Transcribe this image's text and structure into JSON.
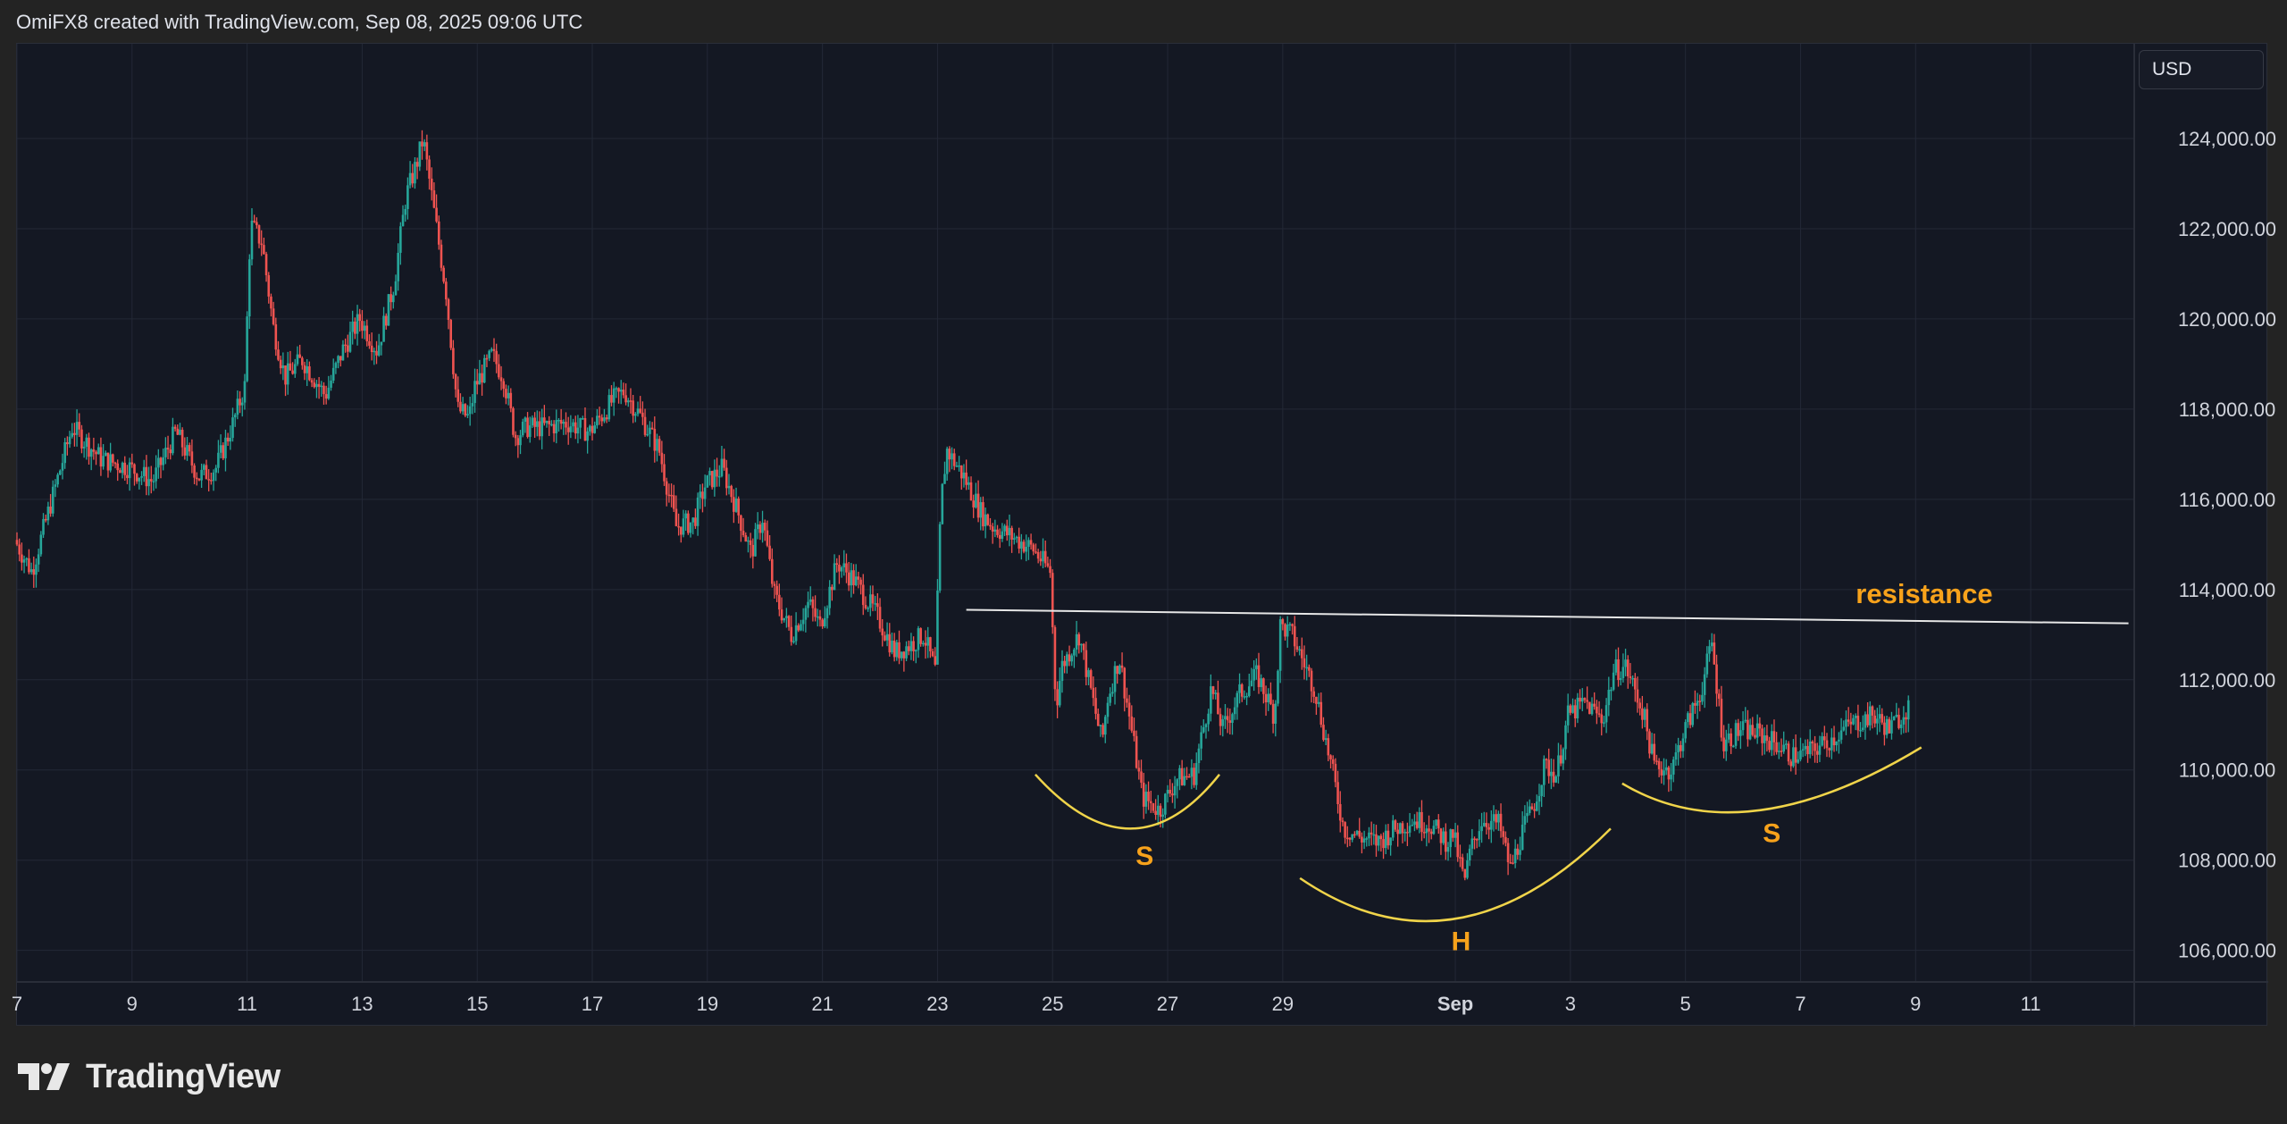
{
  "header": {
    "attribution": "OmiFX8 created with TradingView.com, Sep 08, 2025 09:06 UTC"
  },
  "currency_label": "USD",
  "footer": {
    "brand": "TradingView"
  },
  "colors": {
    "up": "#26a69a",
    "down": "#ef5350",
    "pattern_curve": "#f0d44a",
    "annotation": "#f7a21b",
    "resistance_line": "#e6e6e6",
    "grid": "#232836"
  },
  "chart_data": {
    "type": "candlestick",
    "x_ticks": [
      "7",
      "9",
      "11",
      "13",
      "15",
      "17",
      "19",
      "21",
      "23",
      "25",
      "27",
      "29",
      "Sep",
      "3",
      "5",
      "7",
      "9",
      "11"
    ],
    "x_tick_day_index": [
      0,
      2,
      4,
      6,
      8,
      10,
      12,
      14,
      16,
      18,
      20,
      22,
      25,
      27,
      29,
      31,
      33,
      35
    ],
    "y_ticks": [
      "124,000.00",
      "122,000.00",
      "120,000.00",
      "118,000.00",
      "116,000.00",
      "114,000.00",
      "112,000.00",
      "110,000.00",
      "108,000.00",
      "106,000.00"
    ],
    "y_tick_values": [
      124000,
      122000,
      120000,
      118000,
      116000,
      114000,
      112000,
      110000,
      108000,
      106000
    ],
    "ylim": [
      105300,
      126100
    ],
    "xlim_days": [
      0,
      36.8
    ],
    "price_path": [
      [
        0.0,
        115100
      ],
      [
        0.3,
        114400
      ],
      [
        0.8,
        116700
      ],
      [
        1.0,
        117600
      ],
      [
        1.5,
        116900
      ],
      [
        2.0,
        116700
      ],
      [
        2.4,
        116400
      ],
      [
        2.8,
        117500
      ],
      [
        3.2,
        116500
      ],
      [
        3.5,
        116700
      ],
      [
        3.8,
        117700
      ],
      [
        4.0,
        118500
      ],
      [
        4.1,
        122100
      ],
      [
        4.3,
        121700
      ],
      [
        4.5,
        119800
      ],
      [
        4.7,
        118700
      ],
      [
        5.0,
        119100
      ],
      [
        5.4,
        118300
      ],
      [
        5.7,
        119300
      ],
      [
        6.0,
        120000
      ],
      [
        6.3,
        119300
      ],
      [
        6.6,
        120800
      ],
      [
        6.8,
        122700
      ],
      [
        7.0,
        123500
      ],
      [
        7.1,
        124000
      ],
      [
        7.3,
        122300
      ],
      [
        7.5,
        120600
      ],
      [
        7.7,
        118000
      ],
      [
        7.9,
        117800
      ],
      [
        8.0,
        118500
      ],
      [
        8.3,
        119200
      ],
      [
        8.5,
        118700
      ],
      [
        8.7,
        117400
      ],
      [
        8.9,
        117600
      ],
      [
        9.2,
        117600
      ],
      [
        9.6,
        117700
      ],
      [
        10.0,
        117500
      ],
      [
        10.4,
        118200
      ],
      [
        10.6,
        118400
      ],
      [
        10.9,
        117800
      ],
      [
        11.2,
        117100
      ],
      [
        11.5,
        115400
      ],
      [
        11.8,
        115500
      ],
      [
        12.0,
        116300
      ],
      [
        12.3,
        116700
      ],
      [
        12.6,
        115600
      ],
      [
        12.8,
        114800
      ],
      [
        13.0,
        115600
      ],
      [
        13.2,
        113900
      ],
      [
        13.5,
        113000
      ],
      [
        13.8,
        113700
      ],
      [
        14.0,
        113200
      ],
      [
        14.3,
        114600
      ],
      [
        14.6,
        114200
      ],
      [
        14.8,
        113800
      ],
      [
        15.0,
        113400
      ],
      [
        15.3,
        112600
      ],
      [
        15.6,
        112800
      ],
      [
        15.8,
        113000
      ],
      [
        16.0,
        112200
      ],
      [
        16.1,
        115900
      ],
      [
        16.2,
        117100
      ],
      [
        16.5,
        116500
      ],
      [
        16.8,
        115700
      ],
      [
        17.0,
        115400
      ],
      [
        17.3,
        115200
      ],
      [
        17.7,
        114900
      ],
      [
        18.0,
        114400
      ],
      [
        18.1,
        111400
      ],
      [
        18.2,
        112300
      ],
      [
        18.5,
        113000
      ],
      [
        18.9,
        110600
      ],
      [
        19.0,
        111600
      ],
      [
        19.2,
        112500
      ],
      [
        19.4,
        111000
      ],
      [
        19.6,
        109400
      ],
      [
        19.9,
        109100
      ],
      [
        20.2,
        109800
      ],
      [
        20.5,
        109900
      ],
      [
        20.8,
        111800
      ],
      [
        21.0,
        110900
      ],
      [
        21.3,
        111700
      ],
      [
        21.6,
        112100
      ],
      [
        21.9,
        111200
      ],
      [
        22.0,
        113200
      ],
      [
        22.2,
        113000
      ],
      [
        22.4,
        112400
      ],
      [
        22.6,
        111800
      ],
      [
        22.9,
        110000
      ],
      [
        23.1,
        108700
      ],
      [
        23.4,
        108500
      ],
      [
        23.7,
        108400
      ],
      [
        24.0,
        108700
      ],
      [
        24.3,
        108900
      ],
      [
        24.6,
        108800
      ],
      [
        24.9,
        108400
      ],
      [
        25.0,
        108600
      ],
      [
        25.2,
        107500
      ],
      [
        25.3,
        108200
      ],
      [
        25.5,
        108900
      ],
      [
        25.8,
        108800
      ],
      [
        26.0,
        107800
      ],
      [
        26.2,
        108600
      ],
      [
        26.4,
        109200
      ],
      [
        26.6,
        110100
      ],
      [
        26.8,
        109900
      ],
      [
        27.0,
        111200
      ],
      [
        27.3,
        111500
      ],
      [
        27.6,
        111100
      ],
      [
        27.8,
        112200
      ],
      [
        28.0,
        112300
      ],
      [
        28.3,
        111300
      ],
      [
        28.5,
        110100
      ],
      [
        28.8,
        110000
      ],
      [
        29.0,
        110800
      ],
      [
        29.3,
        111700
      ],
      [
        29.5,
        112800
      ],
      [
        29.7,
        110600
      ],
      [
        30.0,
        110900
      ],
      [
        30.3,
        110800
      ],
      [
        30.6,
        110600
      ],
      [
        30.9,
        110300
      ],
      [
        31.2,
        110400
      ],
      [
        31.6,
        110700
      ],
      [
        31.9,
        111000
      ],
      [
        32.3,
        111200
      ],
      [
        32.6,
        110900
      ],
      [
        32.9,
        111400
      ]
    ],
    "resistance_line": {
      "start": [
        16.5,
        113550
      ],
      "end": [
        36.7,
        113250
      ],
      "label": "resistance"
    },
    "pattern": [
      {
        "label": "S",
        "curve": [
          [
            17.7,
            109900
          ],
          [
            19.4,
            108700
          ],
          [
            20.9,
            109900
          ]
        ],
        "label_at": [
          19.6,
          107900
        ]
      },
      {
        "label": "H",
        "curve": [
          [
            22.3,
            107600
          ],
          [
            25.0,
            106700
          ],
          [
            27.7,
            108700
          ]
        ],
        "label_at": [
          25.1,
          106000
        ]
      },
      {
        "label": "S",
        "curve": [
          [
            27.9,
            109700
          ],
          [
            30.0,
            109100
          ],
          [
            33.1,
            110500
          ]
        ],
        "label_at": [
          30.5,
          108400
        ]
      }
    ]
  }
}
